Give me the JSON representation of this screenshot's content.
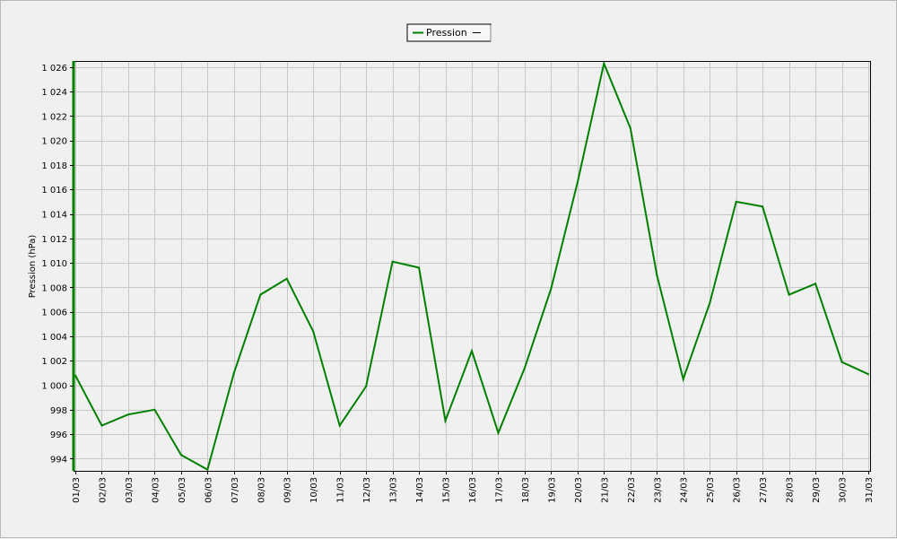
{
  "chart_data": {
    "type": "line",
    "title": "",
    "xlabel": "",
    "ylabel": "Pression (hPa)",
    "legend": {
      "position": "top-center",
      "entries": [
        "Pression"
      ]
    },
    "grid": true,
    "ylim": [
      993,
      1026.5
    ],
    "yticks": [
      994,
      996,
      998,
      1000,
      1002,
      1004,
      1006,
      1008,
      1010,
      1012,
      1014,
      1016,
      1018,
      1020,
      1022,
      1024,
      1026
    ],
    "ytick_labels": [
      "994",
      "996",
      "998",
      "1 000",
      "1 002",
      "1 004",
      "1 006",
      "1 008",
      "1 010",
      "1 012",
      "1 014",
      "1 016",
      "1 018",
      "1 020",
      "1 022",
      "1 024",
      "1 026"
    ],
    "categories": [
      "01/03",
      "02/03",
      "03/03",
      "04/03",
      "05/03",
      "06/03",
      "07/03",
      "08/03",
      "09/03",
      "10/03",
      "11/03",
      "12/03",
      "13/03",
      "14/03",
      "15/03",
      "16/03",
      "17/03",
      "18/03",
      "19/03",
      "20/03",
      "21/03",
      "22/03",
      "23/03",
      "24/03",
      "25/03",
      "26/03",
      "27/03",
      "28/03",
      "29/03",
      "30/03",
      "31/03"
    ],
    "series": [
      {
        "name": "Pression",
        "color": "#008000",
        "values": [
          1000.8,
          996.7,
          997.6,
          998.0,
          994.3,
          993.1,
          1001.0,
          1007.4,
          1008.7,
          1004.4,
          996.7,
          999.9,
          1010.1,
          1009.6,
          997.1,
          1002.8,
          996.1,
          1001.4,
          1007.9,
          1016.6,
          1026.3,
          1021.0,
          1009.0,
          1000.5,
          1006.7,
          1015.0,
          1014.6,
          1007.4,
          1008.3,
          1001.9,
          1000.9
        ]
      }
    ]
  }
}
